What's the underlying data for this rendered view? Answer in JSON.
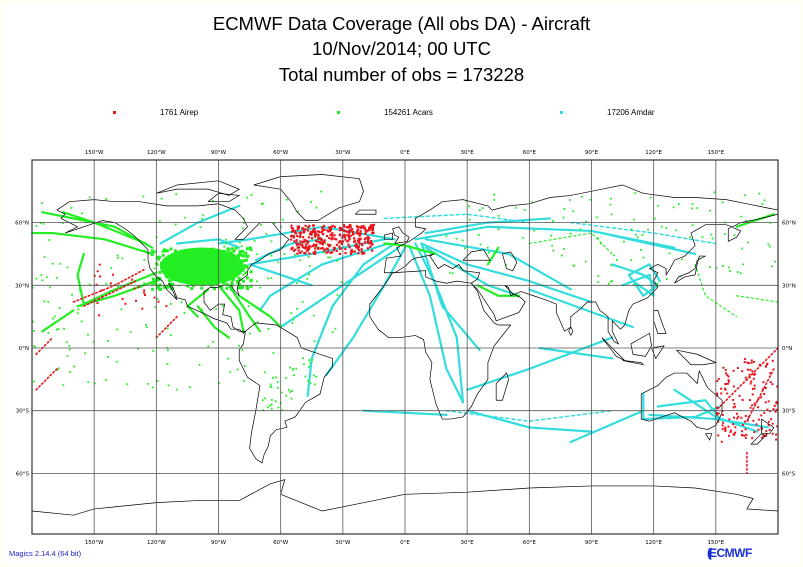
{
  "header": {
    "title_line1": "ECMWF Data Coverage (All obs DA) - Aircraft",
    "title_line2": "10/Nov/2014; 00 UTC",
    "title_line3": "Total number of obs = 173228"
  },
  "legend": [
    {
      "count": "1761",
      "name": "Airep",
      "label": "1761 Airep",
      "color": "#e8141e"
    },
    {
      "count": "154261",
      "name": "Acars",
      "label": "154261 Acars",
      "color": "#22ee22"
    },
    {
      "count": "17206",
      "name": "Amdar",
      "label": "17206 Amdar",
      "color": "#33dddd"
    }
  ],
  "axes": {
    "top_lon_labels": [
      "150°W",
      "120°W",
      "90°W",
      "60°W",
      "30°W",
      "0°E",
      "30°E",
      "60°E",
      "90°E",
      "120°E",
      "150°E"
    ],
    "bottom_lon_labels": [
      "150°W",
      "120°W",
      "90°W",
      "60°W",
      "30°W",
      "0°E",
      "30°E",
      "60°E",
      "90°E",
      "120°E",
      "150°E"
    ],
    "left_lat_labels": [
      "60°N",
      "30°N",
      "0°N",
      "30°S",
      "60°S"
    ],
    "right_lat_labels": [
      "60°N",
      "30°N",
      "0°N",
      "30°S",
      "60°S"
    ],
    "lon_values": [
      -150,
      -120,
      -90,
      -60,
      -30,
      0,
      30,
      60,
      90,
      120,
      150
    ],
    "lat_values": [
      60,
      30,
      0,
      -30,
      -60
    ]
  },
  "footer": {
    "version": "Magics 2.14.4 (64 bit)",
    "logo": "ECMWF"
  },
  "colors": {
    "airep": "#e8141e",
    "acars": "#22ee22",
    "amdar": "#33dddd",
    "coast": "#000000",
    "grid": "#555555"
  },
  "chart_data": {
    "type": "scatter",
    "title": "ECMWF Data Coverage (All obs DA) - Aircraft",
    "subtitle": "10/Nov/2014; 00 UTC — Total number of obs = 173228",
    "projection": "cylindrical (plate carree)",
    "xlim": [
      -180,
      180
    ],
    "ylim": [
      -90,
      90
    ],
    "grid": true,
    "legend_position": "top",
    "series": [
      {
        "name": "Airep",
        "count": 1761,
        "color": "#e8141e"
      },
      {
        "name": "Acars",
        "count": 154261,
        "color": "#22ee22"
      },
      {
        "name": "Amdar",
        "count": 17206,
        "color": "#33dddd"
      }
    ],
    "total": 173228
  }
}
